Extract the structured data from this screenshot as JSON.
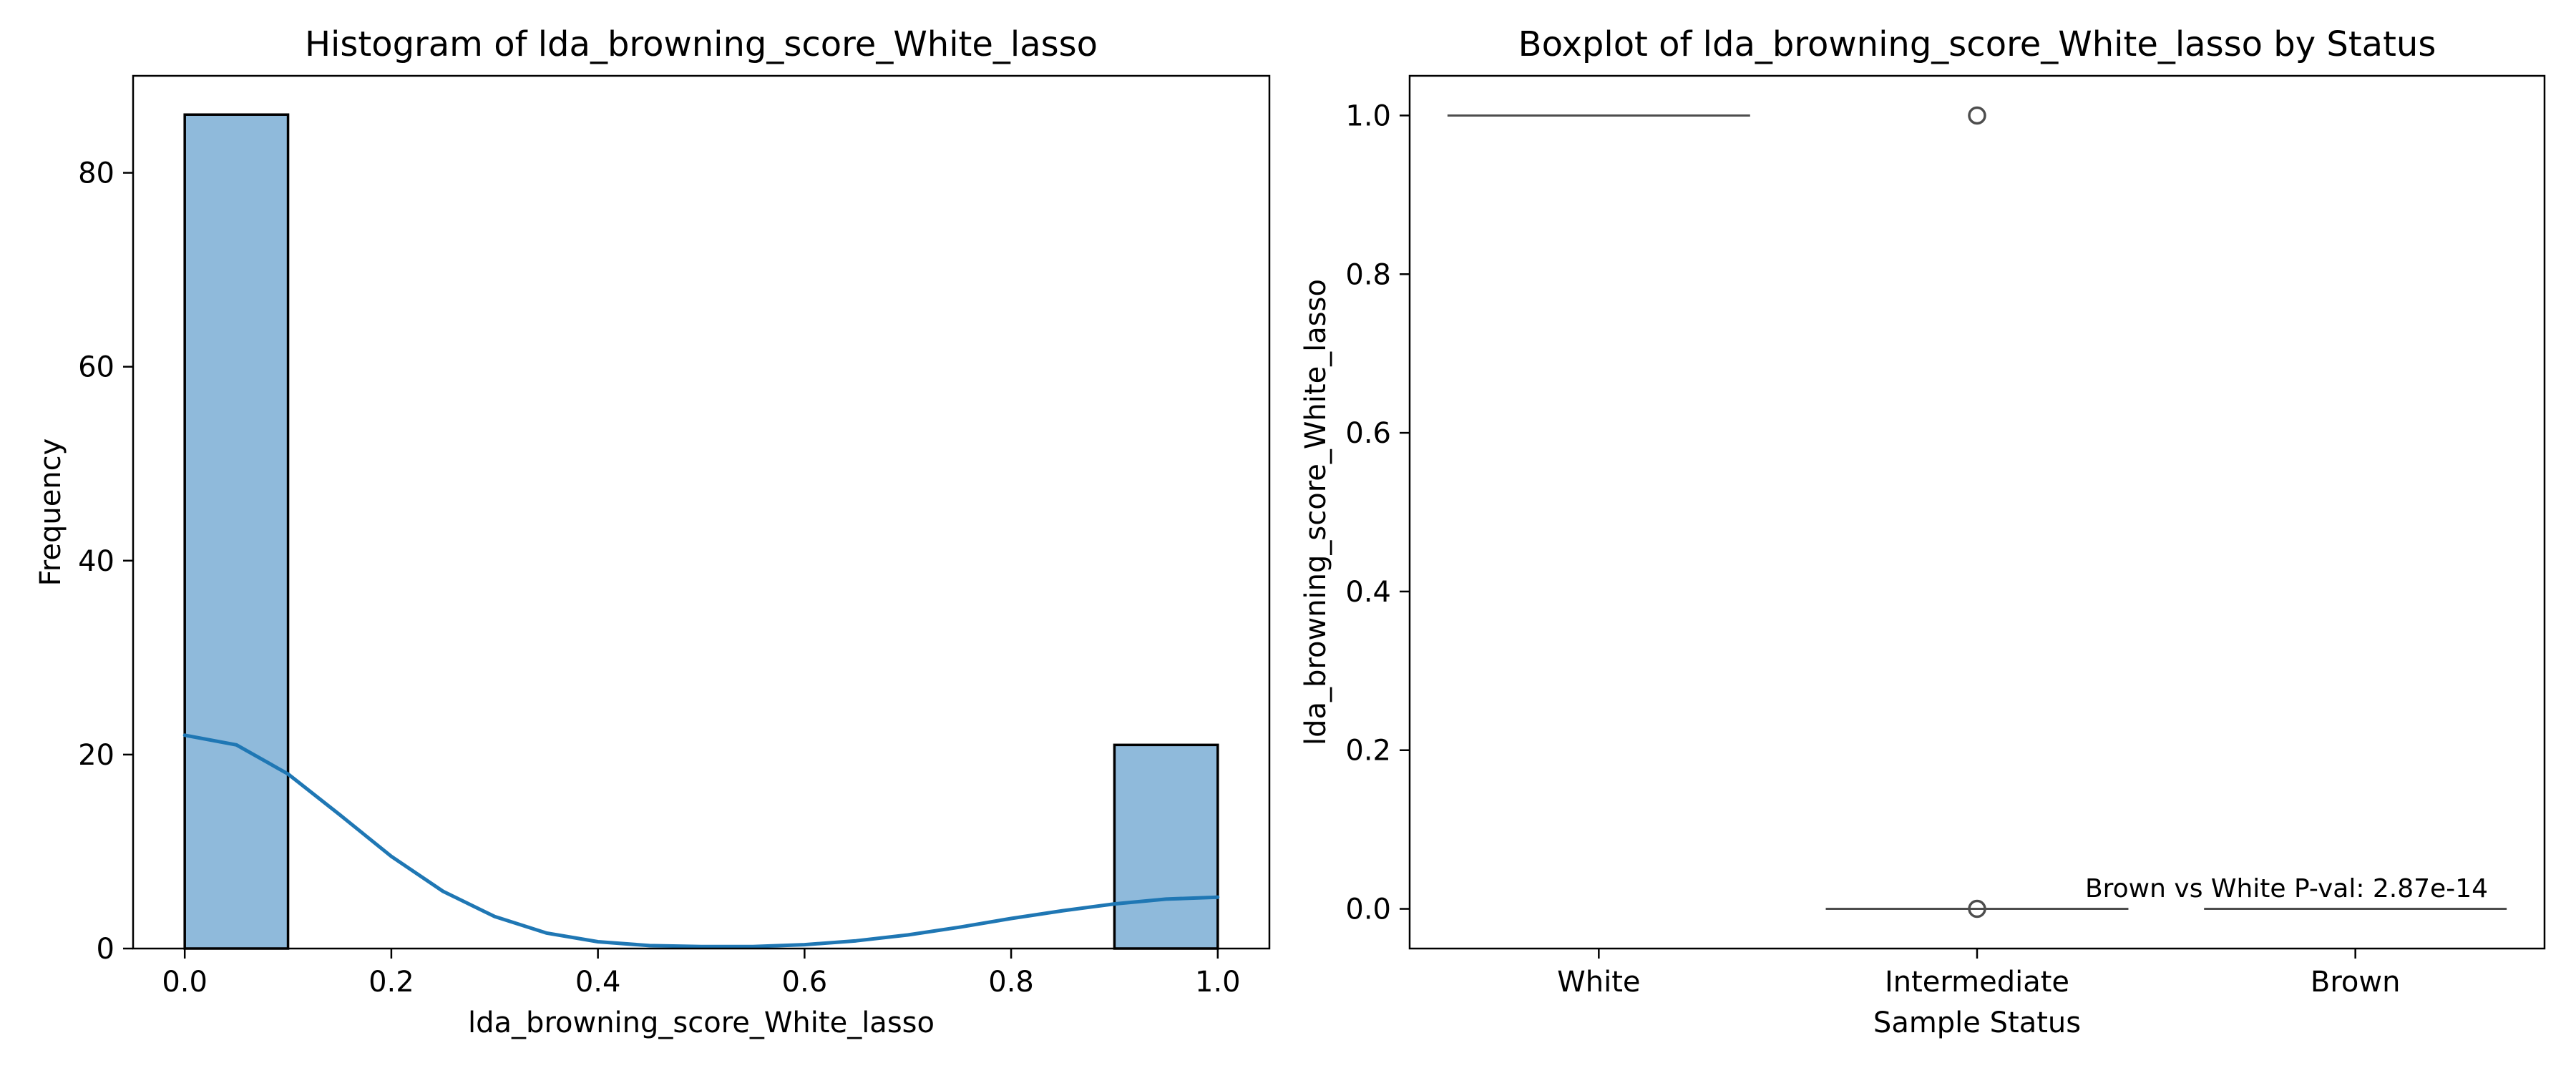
{
  "chart_data": [
    {
      "type": "bar",
      "title": "Histogram of lda_browning_score_White_lasso",
      "xlabel": "lda_browning_score_White_lasso",
      "ylabel": "Frequency",
      "xlim": [
        -0.05,
        1.05
      ],
      "ylim": [
        0,
        90
      ],
      "xticks": [
        0.0,
        0.2,
        0.4,
        0.6,
        0.8,
        1.0
      ],
      "xtick_labels": [
        "0.0",
        "0.2",
        "0.4",
        "0.6",
        "0.8",
        "1.0"
      ],
      "yticks": [
        0,
        20,
        40,
        60,
        80
      ],
      "ytick_labels": [
        "0",
        "20",
        "40",
        "60",
        "80"
      ],
      "bins": [
        {
          "x0": 0.0,
          "x1": 0.1,
          "count": 86
        },
        {
          "x0": 0.9,
          "x1": 1.0,
          "count": 21
        }
      ],
      "kde": {
        "x": [
          0.0,
          0.05,
          0.1,
          0.15,
          0.2,
          0.25,
          0.3,
          0.35,
          0.4,
          0.45,
          0.5,
          0.55,
          0.6,
          0.65,
          0.7,
          0.75,
          0.8,
          0.85,
          0.9,
          0.95,
          1.0
        ],
        "y": [
          22.0,
          21.0,
          18.0,
          13.8,
          9.5,
          5.9,
          3.3,
          1.6,
          0.7,
          0.3,
          0.2,
          0.2,
          0.4,
          0.8,
          1.4,
          2.2,
          3.1,
          3.9,
          4.6,
          5.1,
          5.3
        ]
      },
      "colors": {
        "bar_fill": "#8fbadb",
        "bar_edge": "#000000",
        "kde_line": "#1f77b4"
      }
    },
    {
      "type": "boxplot",
      "title": "Boxplot of lda_browning_score_White_lasso by Status",
      "xlabel": "Sample Status",
      "ylabel": "lda_browning_score_White_lasso",
      "ylim": [
        -0.05,
        1.05
      ],
      "yticks": [
        0.0,
        0.2,
        0.4,
        0.6,
        0.8,
        1.0
      ],
      "ytick_labels": [
        "0.0",
        "0.2",
        "0.4",
        "0.6",
        "0.8",
        "1.0"
      ],
      "categories": [
        "White",
        "Intermediate",
        "Brown"
      ],
      "boxes": [
        {
          "category": "White",
          "median": 1.0,
          "q1": 1.0,
          "q3": 1.0,
          "outliers": []
        },
        {
          "category": "Intermediate",
          "median": 0.0,
          "q1": 0.0,
          "q3": 0.0,
          "outliers": [
            1.0,
            0.0
          ]
        },
        {
          "category": "Brown",
          "median": 0.0,
          "q1": 0.0,
          "q3": 0.0,
          "outliers": []
        }
      ],
      "annotation": "Brown vs White P-val: 2.87e-14",
      "colors": {
        "box_line": "#4d4d4d"
      }
    }
  ]
}
